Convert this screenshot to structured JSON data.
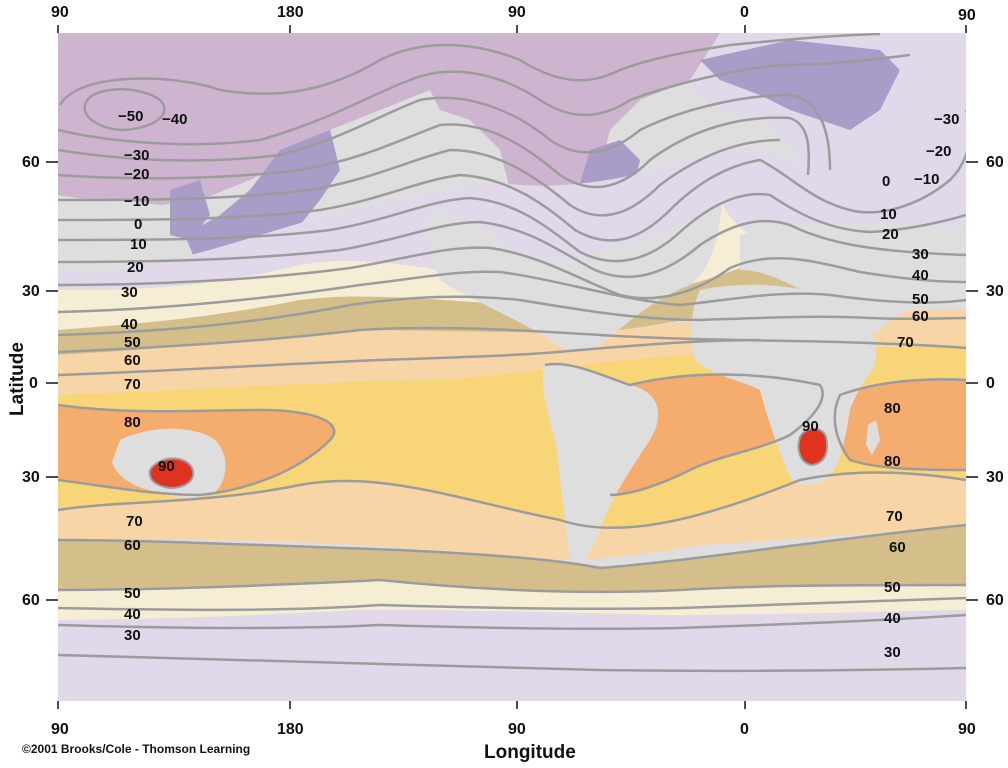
{
  "axes": {
    "xlabel": "Longitude",
    "ylabel": "Latitude",
    "top_ticks": [
      "90",
      "180",
      "90",
      "0",
      "90"
    ],
    "bottom_ticks": [
      "90",
      "180",
      "90",
      "0",
      "90"
    ],
    "left_ticks": [
      "60",
      "30",
      "0",
      "30",
      "60"
    ],
    "right_ticks": [
      "60",
      "30",
      "0",
      "30",
      "60"
    ]
  },
  "credit": "©2001 Brooks/Cole - Thomson Learning",
  "isotherm_labels": {
    "west": [
      "−50",
      "−40",
      "−30",
      "−20",
      "−10",
      "0",
      "10",
      "20",
      "30",
      "40",
      "50",
      "60",
      "70",
      "80",
      "90",
      "70",
      "60",
      "50",
      "40",
      "30"
    ],
    "east": [
      "−30",
      "−20",
      "−10",
      "0",
      "10",
      "20",
      "30",
      "40",
      "50",
      "60",
      "70",
      "80",
      "90",
      "80",
      "70",
      "60",
      "50",
      "40",
      "30"
    ]
  },
  "colors": {
    "ocean": "#dedede",
    "land_dark_purple": "#a99cc9",
    "land_pink_purple": "#cdb5cf",
    "light_purple": "#e1d8e9",
    "cream": "#f5eed5",
    "tan": "#d4bf8a",
    "light_orange": "#f8d5a6",
    "yellow": "#f8d577",
    "orange": "#f4ad6e",
    "red": "#e0331f",
    "isotherm": "#9c9c9c"
  }
}
